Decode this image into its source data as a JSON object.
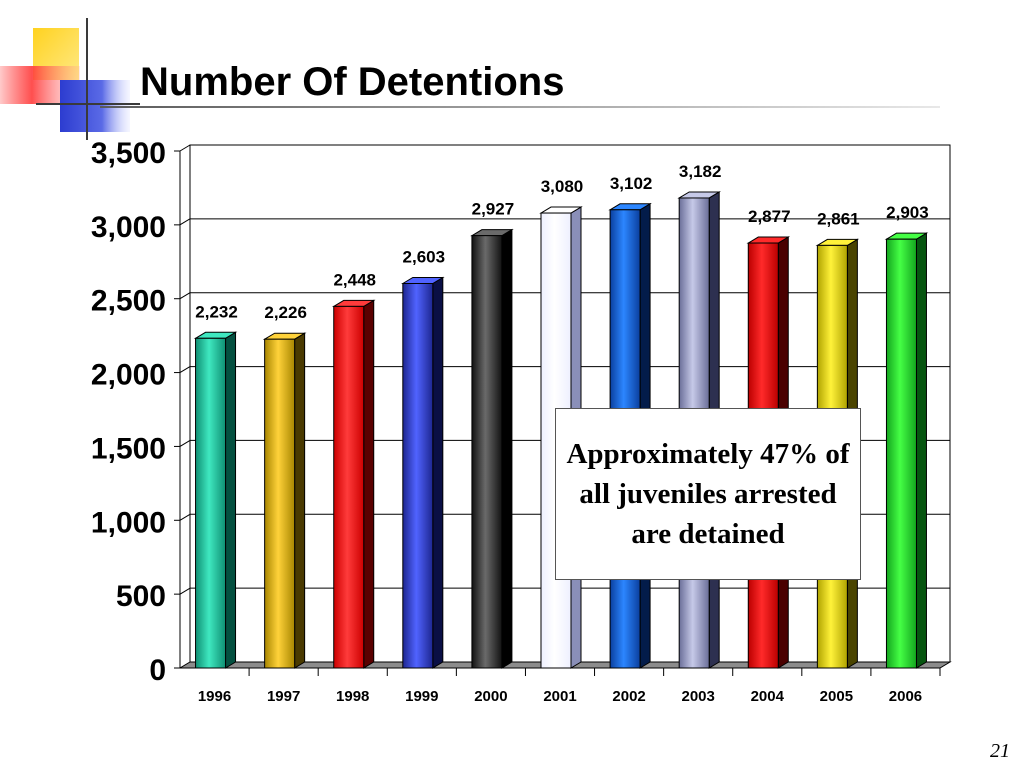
{
  "slide": {
    "title": "Number Of Detentions",
    "slide_number": "21",
    "callout_text": "Approximately 47% of all juveniles arrested are detained"
  },
  "chart_data": {
    "type": "bar",
    "title": "",
    "xlabel": "",
    "ylabel": "",
    "categories": [
      "1996",
      "1997",
      "1998",
      "1999",
      "2000",
      "2001",
      "2002",
      "2003",
      "2004",
      "2005",
      "2006"
    ],
    "values": [
      2232,
      2226,
      2448,
      2603,
      2927,
      3080,
      3102,
      3182,
      2877,
      2861,
      2903
    ],
    "value_labels": [
      "2,232",
      "2,226",
      "2,448",
      "2,603",
      "2,927",
      "3,080",
      "3,102",
      "3,182",
      "2,877",
      "2,861",
      "2,903"
    ],
    "ylim": [
      0,
      3500
    ],
    "y_ticks": [
      0,
      500,
      1000,
      1500,
      2000,
      2500,
      3000,
      3500
    ],
    "y_tick_labels": [
      "0",
      "500",
      "1,000",
      "1,500",
      "2,000",
      "2,500",
      "3,000",
      "3,500"
    ],
    "grid": true,
    "legend": "none",
    "bar_colors": [
      "#0f8f73",
      "#a88600",
      "#cc0000",
      "#1d2690",
      "#121212",
      "#eef0ff",
      "#0a3f9e",
      "#6a6e98",
      "#bb0000",
      "#b0a300",
      "#13a51e"
    ],
    "highlight_colors": [
      "#3fe8c0",
      "#ffd23a",
      "#ff3b3b",
      "#5063ff",
      "#6a6a6a",
      "#ffffff",
      "#2c86ff",
      "#c6c9e8",
      "#ff2a2a",
      "#fff23a",
      "#45ff45"
    ],
    "dark_colors": [
      "#045040",
      "#4a3a00",
      "#5a0000",
      "#0a0f45",
      "#000000",
      "#8a8fb8",
      "#031c4a",
      "#2d3050",
      "#4a0000",
      "#4a4400",
      "#065510"
    ]
  },
  "colors": {
    "decor_yellow": "#ffd21f",
    "decor_red": "#ff3b3b",
    "decor_blue": "#2f3fd6"
  }
}
